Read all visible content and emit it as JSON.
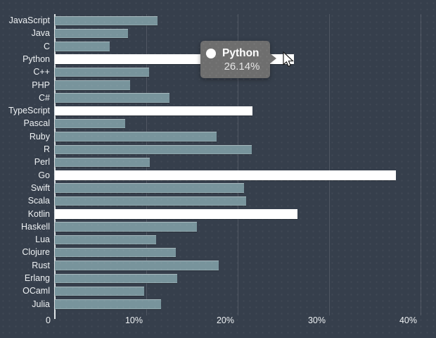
{
  "chart_data": {
    "type": "bar",
    "orientation": "horizontal",
    "title": "",
    "xlabel": "",
    "ylabel": "",
    "xlim": [
      0,
      41.7
    ],
    "grid": "vertical",
    "categories": [
      "JavaScript",
      "Java",
      "C",
      "Python",
      "C++",
      "PHP",
      "C#",
      "TypeScript",
      "Pascal",
      "Ruby",
      "R",
      "Perl",
      "Go",
      "Swift",
      "Scala",
      "Kotlin",
      "Haskell",
      "Lua",
      "Clojure",
      "Rust",
      "Erlang",
      "OCaml",
      "Julia"
    ],
    "values": [
      11.2,
      8.0,
      6.0,
      26.14,
      10.3,
      8.2,
      12.5,
      21.6,
      7.7,
      17.7,
      21.5,
      10.4,
      37.3,
      20.7,
      20.9,
      26.5,
      15.5,
      11.1,
      13.2,
      17.9,
      13.4,
      9.8,
      11.6
    ],
    "highlighted_indices": [
      3,
      7,
      12,
      15
    ],
    "x_ticks": [
      {
        "value": 0,
        "label": "0"
      },
      {
        "value": 10,
        "label": "10%"
      },
      {
        "value": 20,
        "label": "20%"
      },
      {
        "value": 30,
        "label": "30%"
      },
      {
        "value": 40,
        "label": "40%"
      }
    ]
  },
  "tooltip": {
    "label": "Python",
    "value_text": "26.14%"
  },
  "colors": {
    "background": "#363f4c",
    "bar_default": "#78949c",
    "bar_highlight": "#ffffff",
    "axis_line": "#dfe5e8",
    "gridline": "rgba(255,255,255,0.13)",
    "text": "#eef1f3",
    "tooltip_background": "#6e6e6e",
    "tooltip_text": "#ffffff",
    "tooltip_value_text": "#e6e6e6"
  }
}
